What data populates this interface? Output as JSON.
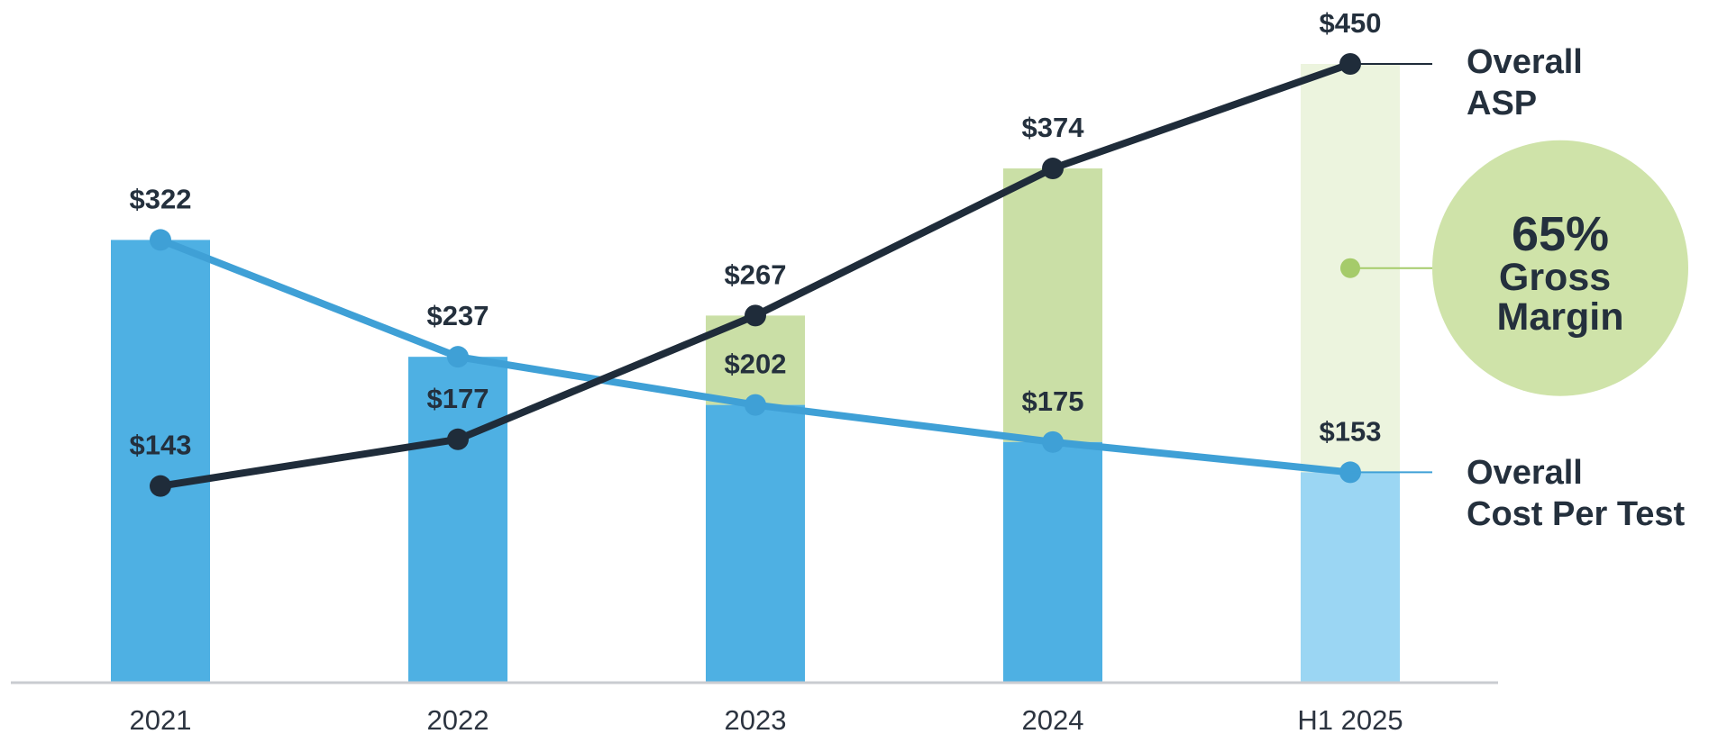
{
  "chart_data": {
    "type": "bar",
    "categories": [
      "2021",
      "2022",
      "2023",
      "2024",
      "H1 2025"
    ],
    "series": [
      {
        "name": "Overall ASP",
        "kind": "line",
        "values": [
          143,
          177,
          267,
          374,
          450
        ],
        "labels": [
          "$143",
          "$177",
          "$267",
          "$374",
          "$450"
        ],
        "color": "#1f2c3a",
        "label_lines": [
          "Overall",
          "ASP"
        ]
      },
      {
        "name": "Overall Cost Per Test",
        "kind": "line",
        "values": [
          322,
          237,
          202,
          175,
          153
        ],
        "labels": [
          "$322",
          "$237",
          "$202",
          "$175",
          "$153"
        ],
        "color": "#3fa0d6",
        "label_lines": [
          "Overall",
          "Cost Per Test"
        ]
      }
    ],
    "bar_colors": {
      "cost": "#4eb0e3",
      "cost_partial": "#9bd6f3",
      "margin": "#cadfa6",
      "margin_partial": "#ecf4de"
    },
    "gross_margin": {
      "value": "65%",
      "label_lines": [
        "Gross",
        "Margin"
      ],
      "color": "#cfe3a9",
      "dot_color": "#a5cb6a"
    },
    "ylim": [
      0,
      450
    ],
    "xlabel": "",
    "ylabel": "",
    "grid": false,
    "axis_color": "#c9ccd1"
  }
}
